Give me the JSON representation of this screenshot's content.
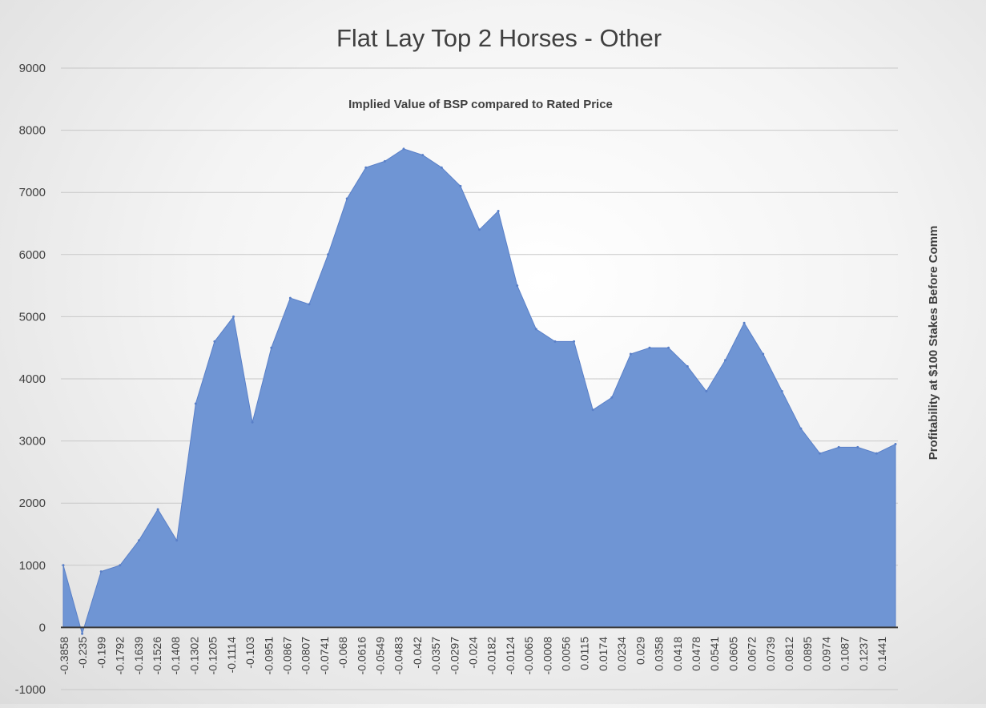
{
  "chart_data": {
    "type": "area",
    "title": "Flat Lay Top 2 Horses - Other",
    "subtitle": "Implied Value of BSP compared to Rated Price",
    "xlabel": "",
    "ylabel": "Profitability at $100 Stakes Before Comm",
    "ylim": [
      -1000,
      9000
    ],
    "yticks": [
      -1000,
      0,
      1000,
      2000,
      3000,
      4000,
      5000,
      6000,
      7000,
      8000,
      9000
    ],
    "grid": true,
    "legend": "none",
    "xtick_labels": [
      "-0.3858",
      "-0.235",
      "-0.199",
      "-0.1792",
      "-0.1639",
      "-0.1526",
      "-0.1408",
      "-0.1302",
      "-0.1205",
      "-0.1114",
      "-0.103",
      "-0.0951",
      "-0.0867",
      "-0.0807",
      "-0.0741",
      "-0.068",
      "-0.0616",
      "-0.0549",
      "-0.0483",
      "-0.042",
      "-0.0357",
      "-0.0297",
      "-0.024",
      "-0.0182",
      "-0.0124",
      "-0.0065",
      "-0.0008",
      "0.0056",
      "0.0115",
      "0.0174",
      "0.0234",
      "0.029",
      "0.0358",
      "0.0418",
      "0.0478",
      "0.0541",
      "0.0605",
      "0.0672",
      "0.0739",
      "0.0812",
      "0.0895",
      "0.0974",
      "0.1087",
      "0.1237",
      "0.1441"
    ],
    "series": [
      {
        "x": [
          "-0.3858",
          "-0.235",
          "-0.199",
          "-0.1792",
          "-0.1639",
          "-0.1526",
          "-0.1408",
          "-0.1302",
          "-0.1205",
          "-0.1114",
          "-0.103",
          "-0.0951",
          "-0.0867",
          "-0.0807",
          "-0.0741",
          "-0.068",
          "-0.0616",
          "-0.0549",
          "-0.0483",
          "-0.042",
          "-0.0357",
          "-0.0297",
          "-0.024",
          "-0.0182",
          "-0.0124",
          "-0.0065",
          "-0.0008",
          "0.0056",
          "0.0115",
          "0.0174",
          "0.0234",
          "0.029",
          "0.0358",
          "0.0418",
          "0.0478",
          "0.0541",
          "0.0605",
          "0.0672",
          "0.0739",
          "0.0812",
          "0.0895",
          "0.0974",
          "0.1087",
          "0.1237",
          "0.1441"
        ],
        "values": [
          1000,
          -100,
          900,
          1000,
          1400,
          1900,
          1400,
          3600,
          4600,
          5000,
          3300,
          4500,
          5300,
          5200,
          6000,
          6900,
          7400,
          7500,
          7700,
          7600,
          7400,
          7100,
          6400,
          6700,
          5500,
          4800,
          4600,
          4600,
          3500,
          3700,
          4400,
          4500,
          4500,
          4200,
          3800,
          4300,
          4900,
          4400,
          3800,
          3200,
          2800,
          2900,
          2900,
          2800,
          2950
        ]
      }
    ],
    "colors": {
      "area_fill": "#6f95d4",
      "area_edge": "#5a80c8",
      "gridline": "#c8c8c8",
      "zero_axis": "#3a3a3a",
      "text": "#404040",
      "title_text": "#404040"
    }
  }
}
